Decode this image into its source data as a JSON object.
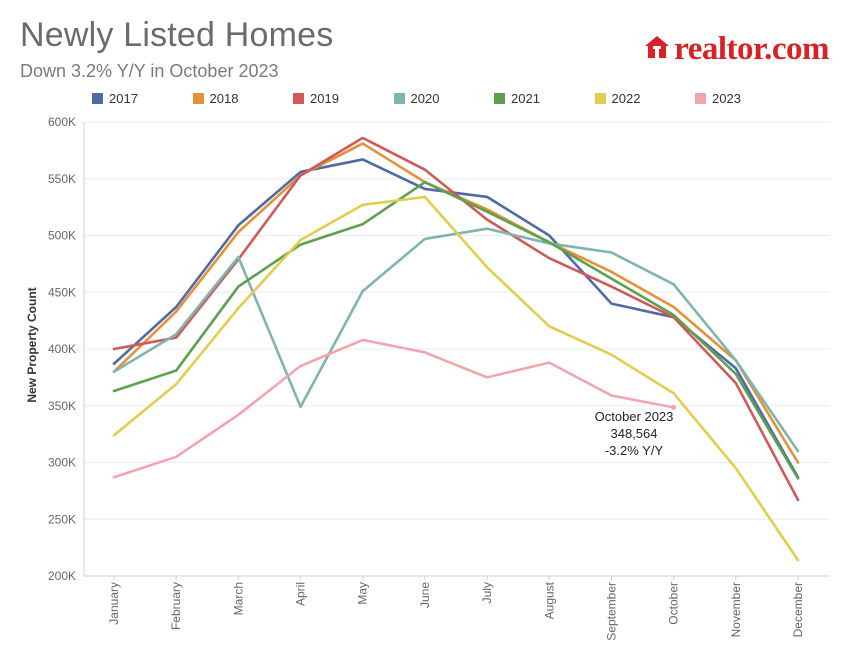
{
  "header": {
    "title": "Newly Listed Homes",
    "subtitle": "Down 3.2% Y/Y in October 2023"
  },
  "brand": {
    "name": "realtor.com",
    "icon": "house-icon",
    "color": "#d92228"
  },
  "chart_data": {
    "type": "line",
    "title": "Newly Listed Homes",
    "subtitle": "Down 3.2% Y/Y in October 2023",
    "xlabel": "",
    "ylabel": "New Property Count",
    "ylim": [
      200000,
      600000
    ],
    "yticks": [
      200000,
      250000,
      300000,
      350000,
      400000,
      450000,
      500000,
      550000,
      600000
    ],
    "ytick_labels": [
      "200K",
      "250K",
      "300K",
      "350K",
      "400K",
      "450K",
      "500K",
      "550K",
      "600K"
    ],
    "categories": [
      "January",
      "February",
      "March",
      "April",
      "May",
      "June",
      "July",
      "August",
      "September",
      "October",
      "November",
      "December"
    ],
    "grid": "horizontal",
    "legend_position": "top",
    "series": [
      {
        "name": "2017",
        "color": "#4e6ba6",
        "values": [
          387000,
          437000,
          509000,
          556000,
          567000,
          541000,
          534000,
          500000,
          440000,
          428000,
          383000,
          287000
        ]
      },
      {
        "name": "2018",
        "color": "#e69138",
        "values": [
          380000,
          433000,
          503000,
          553000,
          581000,
          547000,
          523000,
          494000,
          468000,
          437000,
          390000,
          300000
        ]
      },
      {
        "name": "2019",
        "color": "#d05a5a",
        "values": [
          400000,
          410000,
          479000,
          553000,
          586000,
          558000,
          514000,
          480000,
          455000,
          428000,
          370000,
          267000
        ]
      },
      {
        "name": "2020",
        "color": "#7fb5b0",
        "values": [
          380000,
          413000,
          481000,
          349000,
          451000,
          497000,
          506000,
          493000,
          485000,
          457000,
          390000,
          310000
        ]
      },
      {
        "name": "2021",
        "color": "#5fa050",
        "values": [
          363000,
          381000,
          455000,
          492000,
          510000,
          547000,
          521000,
          494000,
          462000,
          430000,
          378000,
          286000
        ]
      },
      {
        "name": "2022",
        "color": "#e4cd4d",
        "values": [
          324000,
          369000,
          436000,
          496000,
          527000,
          534000,
          472000,
          420000,
          395000,
          361000,
          295000,
          214000
        ]
      },
      {
        "name": "2023",
        "color": "#f4a4ac",
        "values": [
          287000,
          305000,
          342000,
          385000,
          408000,
          397000,
          375000,
          388000,
          359000,
          348564,
          null,
          null
        ]
      }
    ],
    "annotation": {
      "lines": [
        "October 2023",
        "348,564",
        "-3.2% Y/Y"
      ],
      "category": "October",
      "value": 348564
    }
  }
}
